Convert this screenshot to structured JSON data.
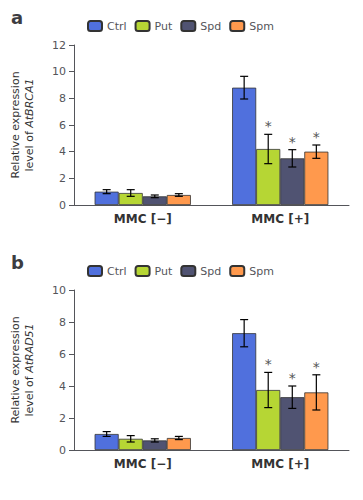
{
  "chart_data": [
    {
      "type": "bar",
      "title": "a",
      "ylabel": "Relative expression\nlevel of AtBRCA1",
      "categories": [
        "MMC [−]",
        "MMC [+]"
      ],
      "series": [
        {
          "name": "Ctrl",
          "values": [
            1.0,
            8.8
          ],
          "errors": [
            0.15,
            0.85
          ]
        },
        {
          "name": "Put",
          "values": [
            0.9,
            4.2
          ],
          "errors": [
            0.25,
            1.1
          ]
        },
        {
          "name": "Spd",
          "values": [
            0.65,
            3.5
          ],
          "errors": [
            0.1,
            0.65
          ]
        },
        {
          "name": "Spm",
          "values": [
            0.75,
            4.0
          ],
          "errors": [
            0.1,
            0.5
          ]
        }
      ],
      "annotations": [
        {
          "text": "*",
          "category": "MMC [+]",
          "series": "Put"
        },
        {
          "text": "*",
          "category": "MMC [+]",
          "series": "Spd"
        },
        {
          "text": "*",
          "category": "MMC [+]",
          "series": "Spm"
        }
      ],
      "ylim": [
        0,
        12
      ],
      "yticks": [
        0,
        2,
        4,
        6,
        8,
        10,
        12
      ],
      "legend": "top",
      "grid": false
    },
    {
      "type": "bar",
      "title": "b",
      "ylabel": "Relative expression\nlevel of AtRAD51",
      "categories": [
        "MMC [−]",
        "MMC [+]"
      ],
      "series": [
        {
          "name": "Ctrl",
          "values": [
            1.0,
            7.3
          ],
          "errors": [
            0.15,
            0.85
          ]
        },
        {
          "name": "Put",
          "values": [
            0.7,
            3.75
          ],
          "errors": [
            0.2,
            1.1
          ]
        },
        {
          "name": "Spd",
          "values": [
            0.6,
            3.3
          ],
          "errors": [
            0.1,
            0.7
          ]
        },
        {
          "name": "Spm",
          "values": [
            0.75,
            3.6
          ],
          "errors": [
            0.1,
            1.1
          ]
        }
      ],
      "annotations": [
        {
          "text": "*",
          "category": "MMC [+]",
          "series": "Put"
        },
        {
          "text": "*",
          "category": "MMC [+]",
          "series": "Spd"
        },
        {
          "text": "*",
          "category": "MMC [+]",
          "series": "Spm"
        }
      ],
      "ylim": [
        0,
        10
      ],
      "yticks": [
        0,
        2,
        4,
        6,
        8,
        10
      ],
      "legend": "top",
      "grid": false
    }
  ]
}
